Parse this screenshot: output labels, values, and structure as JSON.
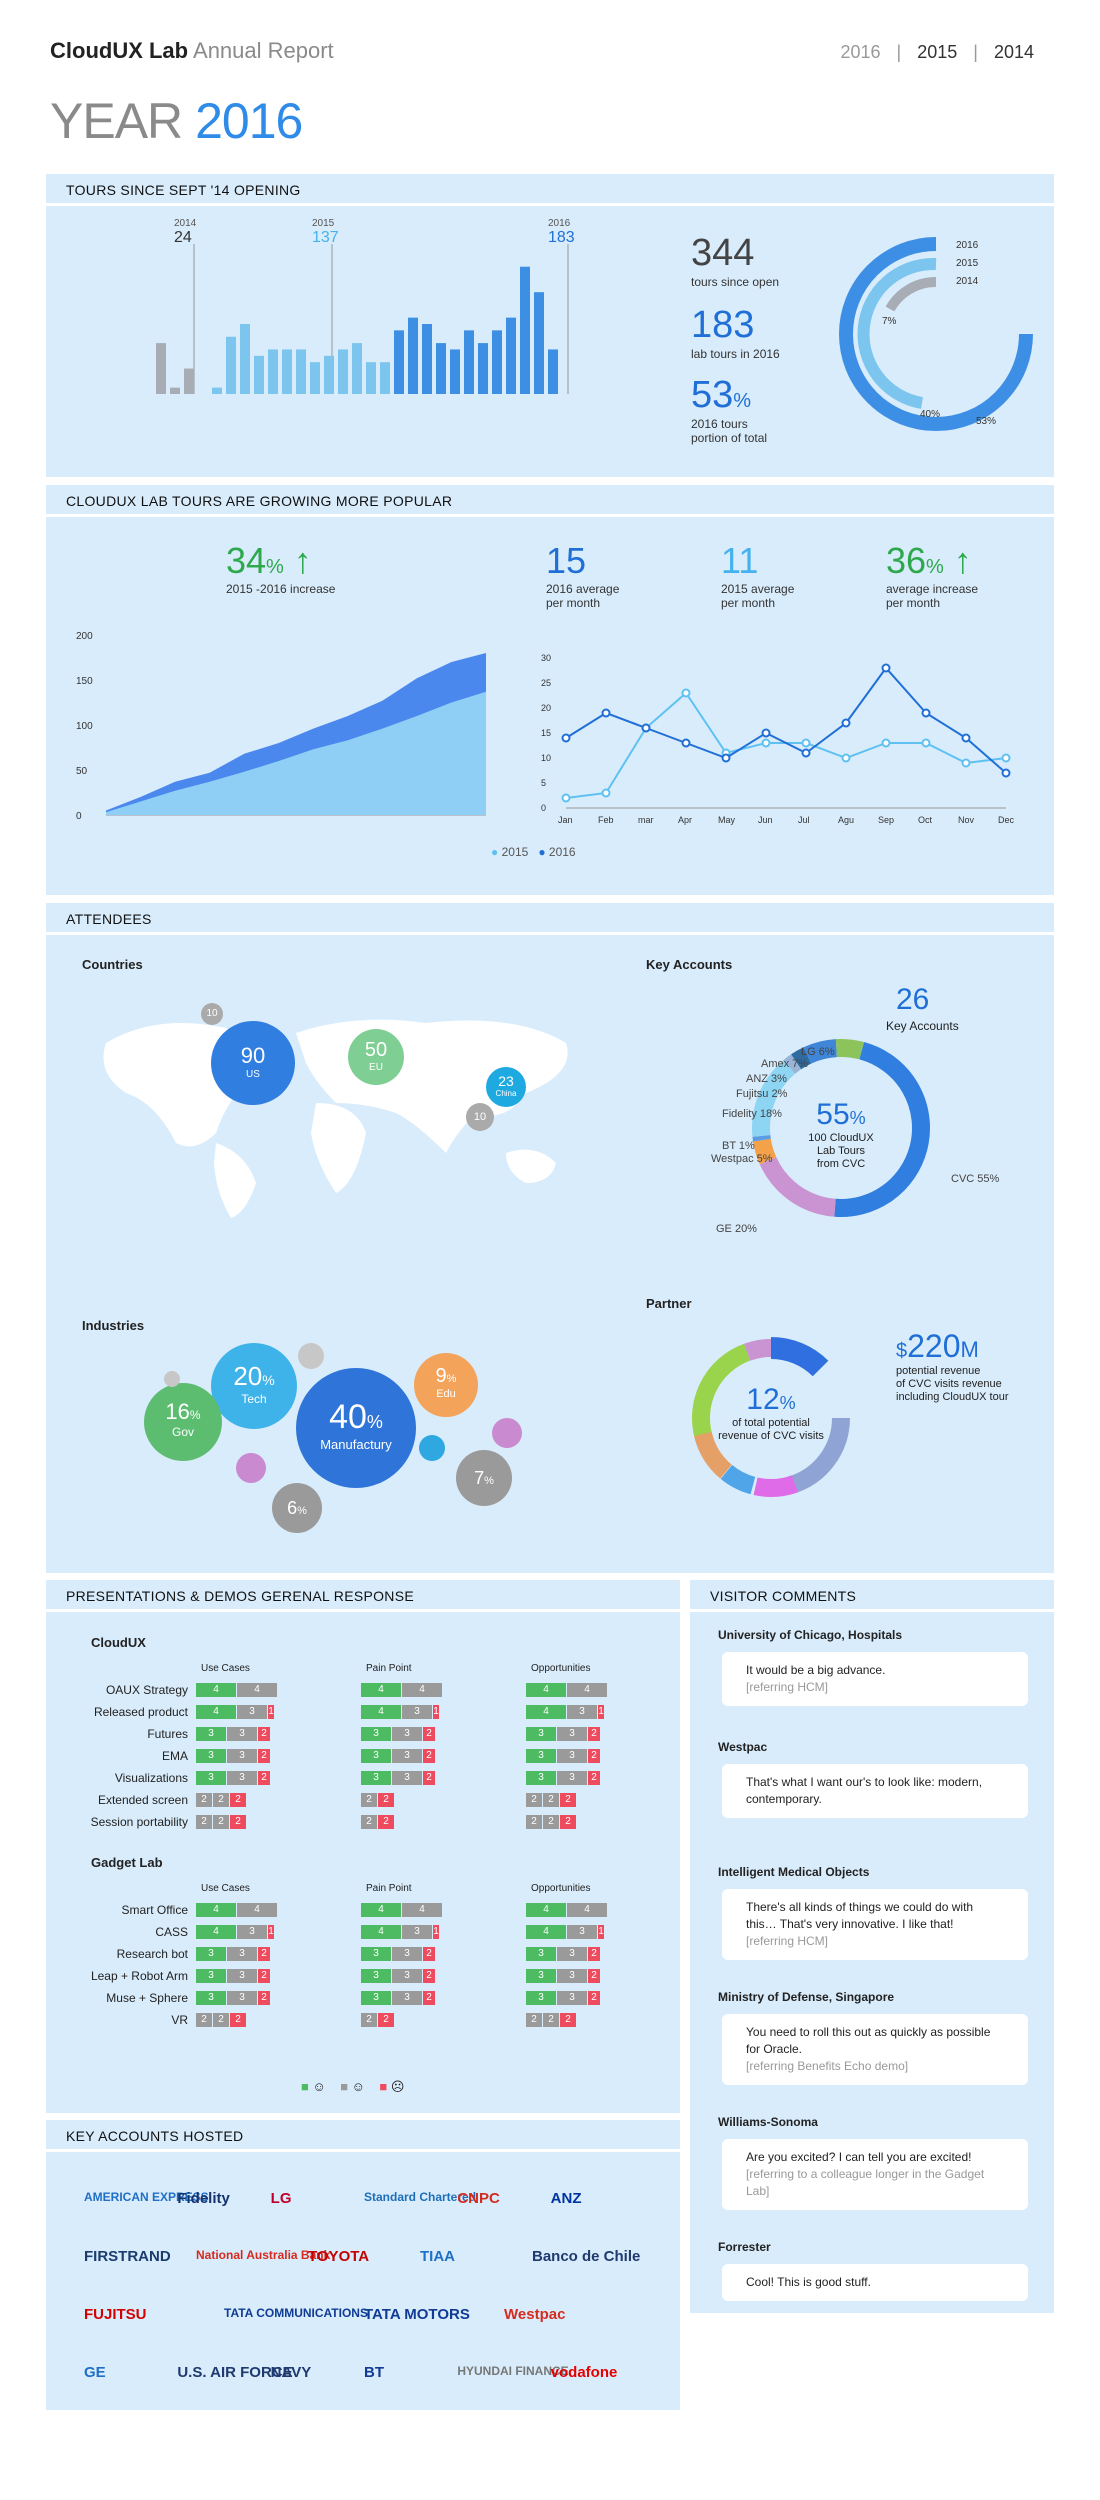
{
  "header": {
    "brand": "CloudUX Lab",
    "subtitle": "Annual Report",
    "years": [
      "2016",
      "2015",
      "2014"
    ],
    "big_year_label": "YEAR",
    "big_year_value": "2016"
  },
  "tours": {
    "title": "TOURS SINCE SEPT '14 OPENING",
    "markers": [
      {
        "year": "2014",
        "value": "24"
      },
      {
        "year": "2015",
        "value": "137"
      },
      {
        "year": "2016",
        "value": "183"
      }
    ],
    "chart_data": {
      "type": "bar",
      "series": [
        {
          "year": "2014",
          "color": "#a8adb5",
          "values": [
            8,
            1,
            4,
            0
          ]
        },
        {
          "year": "2015",
          "color": "#7cc5ee",
          "values": [
            1,
            9,
            11,
            6,
            7,
            7,
            7,
            5,
            6,
            7,
            8,
            5,
            5
          ]
        },
        {
          "year": "2016",
          "color": "#3c8fe3",
          "values": [
            10,
            12,
            11,
            8,
            7,
            10,
            8,
            10,
            12,
            20,
            16,
            7
          ]
        }
      ],
      "ylim": [
        0,
        22
      ]
    },
    "stats": [
      {
        "value": "344",
        "label": "tours since open"
      },
      {
        "value": "183",
        "label": "lab tours in 2016"
      },
      {
        "value": "53",
        "unit": "%",
        "label": "2016 tours\nportion of total"
      }
    ],
    "ring": {
      "legend": [
        "2016",
        "2015",
        "2014"
      ],
      "pcts": [
        "7%",
        "40%",
        "53%"
      ]
    }
  },
  "growth": {
    "title": "CLOUDUX LAB TOURS ARE GROWING MORE POPULAR",
    "kpi_main": {
      "value": "34",
      "unit": "%",
      "arrow": "↑",
      "label": "2015 -2016 increase"
    },
    "kpis": [
      {
        "value": "15",
        "label": "2016 average\nper month",
        "color": "#1f6fd6"
      },
      {
        "value": "11",
        "label": "2015 average\nper month",
        "color": "#45b2ee"
      },
      {
        "value": "36",
        "unit": "%",
        "arrow": "↑",
        "label": "average increase\nper month",
        "color": "#2ea84d"
      }
    ],
    "area_chart": {
      "type": "area",
      "yticks": [
        "200",
        "150",
        "100",
        "50",
        "0"
      ],
      "ylim": [
        0,
        200
      ],
      "series": [
        {
          "name": "2016",
          "values": [
            5,
            20,
            37,
            47,
            68,
            80,
            96,
            110,
            127,
            152,
            170,
            180
          ]
        },
        {
          "name": "2015",
          "values": [
            3,
            15,
            27,
            37,
            48,
            60,
            73,
            83,
            96,
            110,
            125,
            137
          ]
        }
      ]
    },
    "line_chart": {
      "type": "line",
      "categories": [
        "Jan",
        "Feb",
        "mar",
        "Apr",
        "May",
        "Jun",
        "Jul",
        "Agu",
        "Sep",
        "Oct",
        "Nov",
        "Dec"
      ],
      "yticks": [
        "30",
        "25",
        "20",
        "15",
        "10",
        "5",
        "0"
      ],
      "ylim": [
        0,
        30
      ],
      "series": [
        {
          "name": "2015",
          "values": [
            2,
            3,
            16,
            23,
            11,
            13,
            13,
            10,
            13,
            13,
            9,
            10
          ]
        },
        {
          "name": "2016",
          "values": [
            14,
            19,
            16,
            13,
            10,
            15,
            11,
            17,
            28,
            19,
            14,
            7
          ]
        }
      ]
    },
    "legend": [
      "2015",
      "2016"
    ]
  },
  "attendees": {
    "title": "ATTENDEES",
    "countries_label": "Countries",
    "bubbles": [
      {
        "value": "90",
        "label": "US"
      },
      {
        "value": "50",
        "label": "EU"
      },
      {
        "value": "23",
        "label": "China"
      },
      {
        "value": "10",
        "label": ""
      },
      {
        "value": "10",
        "label": ""
      }
    ],
    "industries_label": "Industries",
    "industries": [
      {
        "value": "40",
        "unit": "%",
        "label": "Manufactury"
      },
      {
        "value": "20",
        "unit": "%",
        "label": "Tech"
      },
      {
        "value": "16",
        "unit": "%",
        "label": "Gov"
      },
      {
        "value": "9",
        "unit": "%",
        "label": "Edu"
      },
      {
        "value": "7",
        "unit": "%",
        "label": ""
      },
      {
        "value": "6",
        "unit": "%",
        "label": ""
      }
    ],
    "key_accounts_label": "Key Accounts",
    "key_accounts": {
      "count": "26",
      "count_label": "Key Accounts",
      "center_value": "55",
      "center_unit": "%",
      "center_text": "100 CloudUX\nLab Tours\nfrom CVC",
      "slices": [
        {
          "name": "CVC",
          "pct": "55%",
          "v": 55,
          "color": "#2f7ee0"
        },
        {
          "name": "GE",
          "pct": "20%",
          "v": 20,
          "color": "#c994d1"
        },
        {
          "name": "Westpac",
          "pct": "5%",
          "v": 5,
          "color": "#f3a24a"
        },
        {
          "name": "BT",
          "pct": "1%",
          "v": 1,
          "color": "#5b9de4"
        },
        {
          "name": "Fidelity",
          "pct": "18%",
          "v": 18,
          "color": "#8ed5f3"
        },
        {
          "name": "Fujitsu",
          "pct": "2%",
          "v": 2,
          "color": "#9ab4d8"
        },
        {
          "name": "ANZ",
          "pct": "3%",
          "v": 3,
          "color": "#2f6ba0"
        },
        {
          "name": "Amex",
          "pct": "7%",
          "v": 7,
          "color": "#3f86d8"
        },
        {
          "name": "LG",
          "pct": "6%",
          "v": 6,
          "color": "#8cc35a"
        }
      ]
    },
    "partner_label": "Partner",
    "partner": {
      "center_value": "12",
      "center_unit": "%",
      "center_text": "of total potential\nrevenue of CVC visits",
      "revenue_value": "220",
      "revenue_prefix": "$",
      "revenue_unit": "M",
      "revenue_text": "potential revenue\nof CVC visits revenue\nincluding CloudUX tour"
    }
  },
  "presentations": {
    "title": "PRESENTATIONS & DEMOS GERENAL RESPONSE",
    "columns": [
      "Use Cases",
      "Pain Point",
      "Opportunities"
    ],
    "groups": [
      {
        "name": "CloudUX",
        "rows": [
          {
            "name": "OAUX Strategy",
            "cells": [
              [
                4,
                4,
                0
              ],
              [
                4,
                4,
                0
              ],
              [
                4,
                4,
                0
              ]
            ]
          },
          {
            "name": "Released product",
            "cells": [
              [
                4,
                3,
                1
              ],
              [
                4,
                3,
                1
              ],
              [
                4,
                3,
                1
              ]
            ]
          },
          {
            "name": "Futures",
            "cells": [
              [
                3,
                3,
                2
              ],
              [
                3,
                3,
                2
              ],
              [
                3,
                3,
                2
              ]
            ]
          },
          {
            "name": "EMA",
            "cells": [
              [
                3,
                3,
                2
              ],
              [
                3,
                3,
                2
              ],
              [
                3,
                3,
                2
              ]
            ]
          },
          {
            "name": "Visualizations",
            "cells": [
              [
                3,
                3,
                2
              ],
              [
                3,
                3,
                2
              ],
              [
                3,
                3,
                2
              ]
            ]
          },
          {
            "name": "Extended screen",
            "cells": [
              [
                0,
                2,
                2,
                2
              ],
              [
                0,
                2,
                2
              ],
              [
                0,
                2,
                2,
                2
              ]
            ]
          },
          {
            "name": "Session portability",
            "cells": [
              [
                0,
                2,
                2,
                2
              ],
              [
                0,
                2,
                2
              ],
              [
                0,
                2,
                2,
                2
              ]
            ]
          }
        ]
      },
      {
        "name": "Gadget Lab",
        "rows": [
          {
            "name": "Smart Office",
            "cells": [
              [
                4,
                4,
                0
              ],
              [
                4,
                4,
                0
              ],
              [
                4,
                4,
                0
              ]
            ]
          },
          {
            "name": "CASS",
            "cells": [
              [
                4,
                3,
                1
              ],
              [
                4,
                3,
                1
              ],
              [
                4,
                3,
                1
              ]
            ]
          },
          {
            "name": "Research bot",
            "cells": [
              [
                3,
                3,
                2
              ],
              [
                3,
                3,
                2
              ],
              [
                3,
                3,
                2
              ]
            ]
          },
          {
            "name": "Leap + Robot Arm",
            "cells": [
              [
                3,
                3,
                2
              ],
              [
                3,
                3,
                2
              ],
              [
                3,
                3,
                2
              ]
            ]
          },
          {
            "name": "Muse + Sphere",
            "cells": [
              [
                3,
                3,
                2
              ],
              [
                3,
                3,
                2
              ],
              [
                3,
                3,
                2
              ]
            ]
          },
          {
            "name": "VR",
            "cells": [
              [
                0,
                2,
                2,
                2
              ],
              [
                0,
                2,
                2
              ],
              [
                0,
                2,
                2,
                2
              ]
            ]
          }
        ]
      }
    ],
    "legend": [
      "☺",
      "☺",
      "☹"
    ]
  },
  "comments": {
    "title": "VISITOR COMMENTS",
    "items": [
      {
        "org": "University of Chicago, Hospitals",
        "text": "It would be a big advance.",
        "ref": "[referring HCM]"
      },
      {
        "org": "Westpac",
        "text": "That's what I want our's to look like: modern, contemporary.",
        "ref": ""
      },
      {
        "org": "Intelligent Medical Objects",
        "text": "There's all kinds of things we could do with this… That's very innovative. I like that!",
        "ref": "[referring HCM]"
      },
      {
        "org": "Ministry of Defense, Singapore",
        "text": "You need to roll this out as quickly as possible for Oracle.",
        "ref": "[referring Benefits Echo demo]"
      },
      {
        "org": "Williams-Sonoma",
        "text": "Are you excited? I can tell you are excited!",
        "ref": "[referring to a colleague longer in the Gadget Lab]"
      },
      {
        "org": "Forrester",
        "text": "Cool! This is good stuff.",
        "ref": ""
      }
    ]
  },
  "key_accounts_hosted": {
    "title": "KEY ACCOUNTS HOSTED",
    "logos": [
      "AMERICAN EXPRESS",
      "Fidelity",
      "LG",
      "Standard Chartered",
      "CNPC",
      "ANZ",
      "FIRSTRAND",
      "National Australia Bank",
      "TOYOTA",
      "TIAA",
      "Banco de Chile",
      "FUJITSU",
      "TATA COMMUNICATIONS",
      "TATA MOTORS",
      "Westpac",
      "GE",
      "U.S. AIR FORCE",
      "NAVY",
      "BT",
      "HYUNDAI FINANCE",
      "vodafone"
    ]
  }
}
